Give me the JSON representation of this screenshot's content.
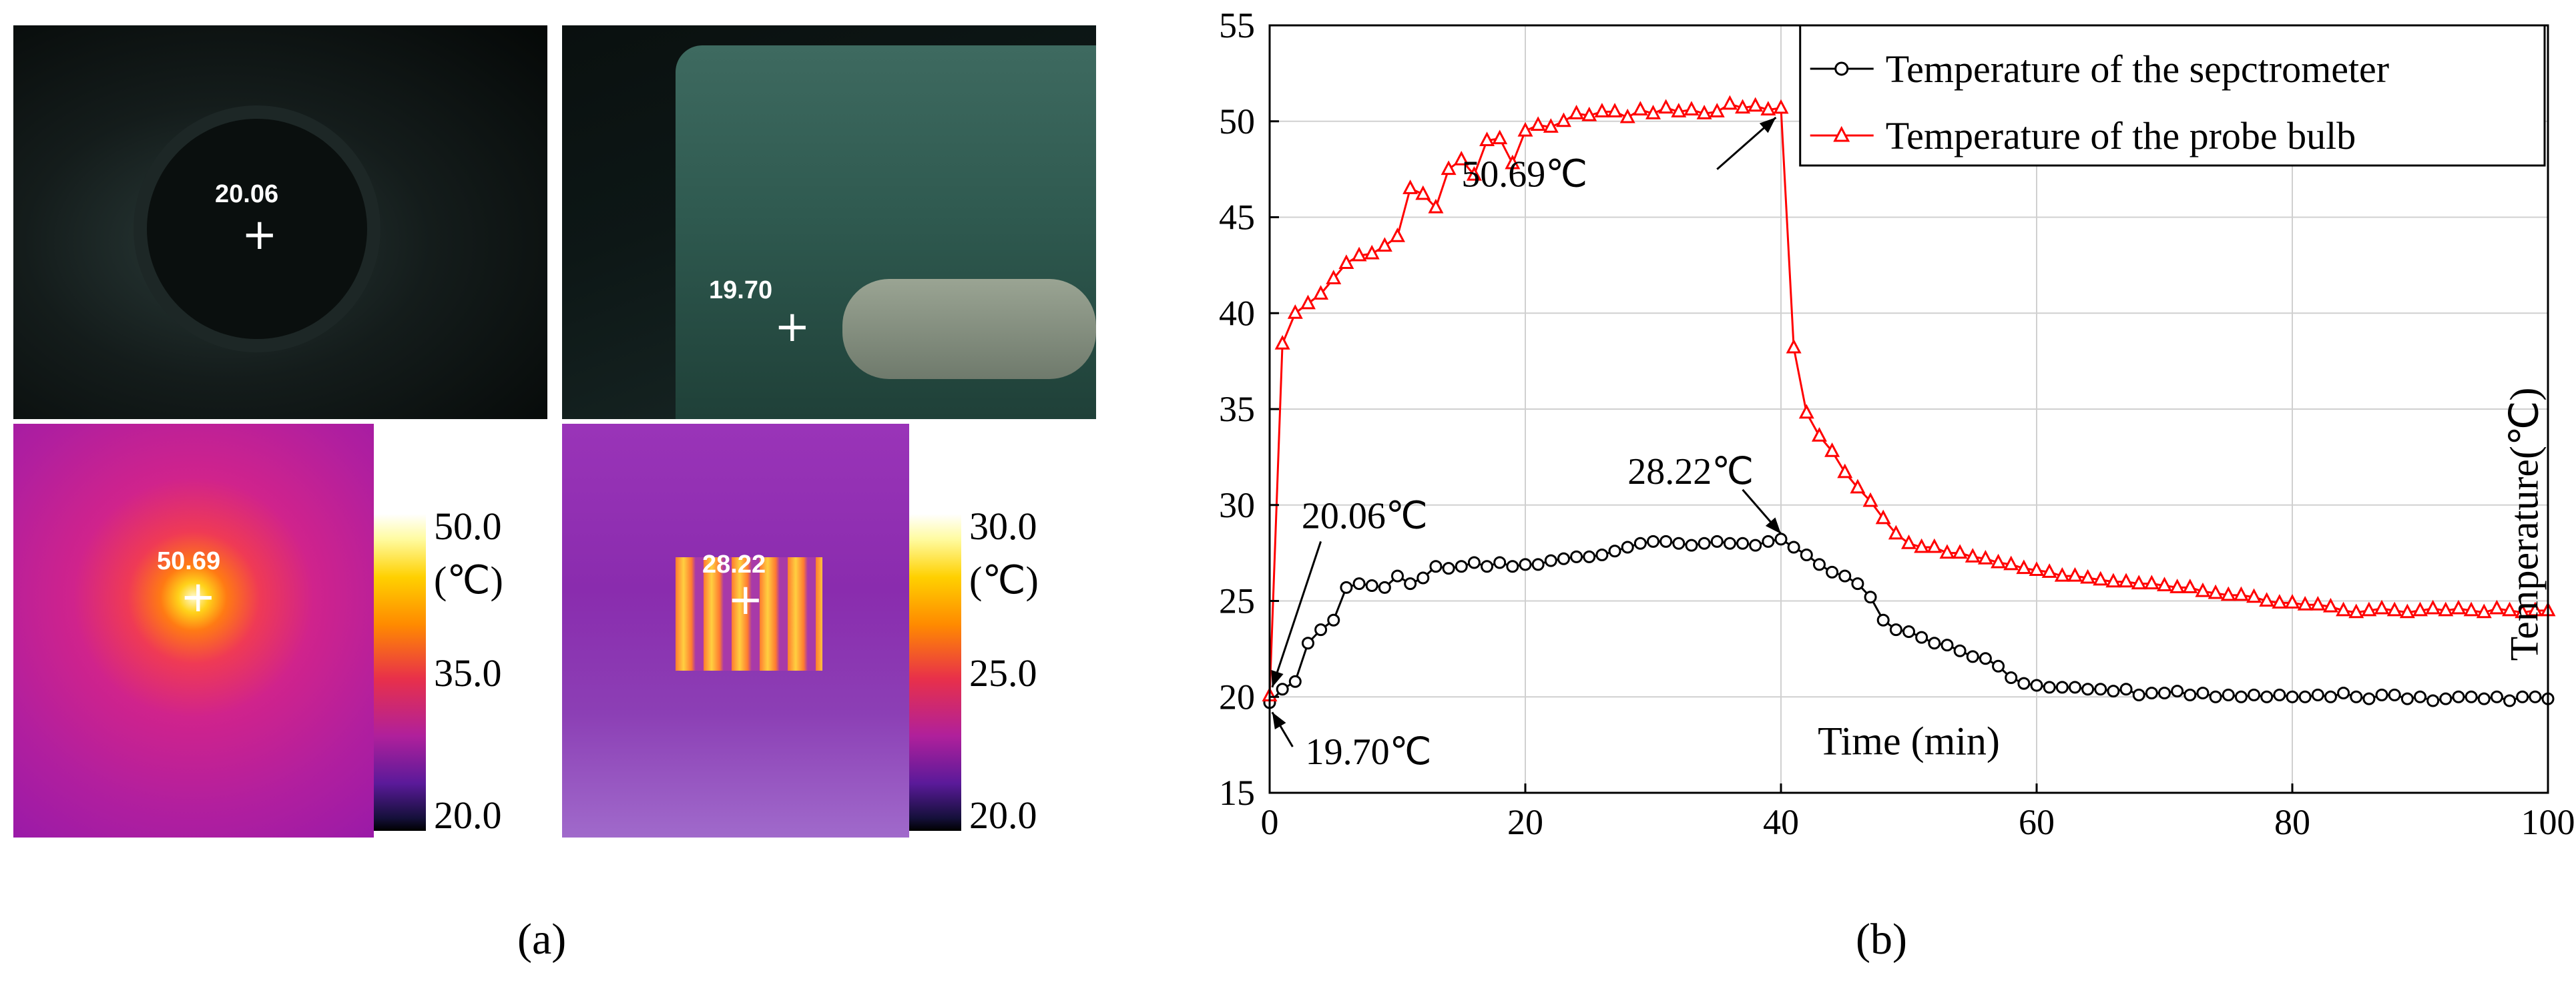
{
  "panel_a": {
    "label": "(a)",
    "photo_left_value": "20.06",
    "photo_right_value": "19.70",
    "thermal_left_value": "50.69",
    "thermal_right_value": "28.22",
    "colorbar_left": {
      "top": "50.0",
      "unit": "(℃)",
      "mid": "35.0",
      "bottom": "20.0"
    },
    "colorbar_right": {
      "top": "30.0",
      "unit": "(℃)",
      "mid": "25.0",
      "bottom": "20.0"
    }
  },
  "panel_b": {
    "label": "(b)"
  },
  "chart_data": {
    "type": "line",
    "xlabel": "Time (min)",
    "ylabel": "Temperature(℃)",
    "xlim": [
      0,
      100
    ],
    "ylim": [
      15,
      55
    ],
    "xticks": [
      "0",
      "20",
      "40",
      "60",
      "80",
      "100"
    ],
    "yticks": [
      "15",
      "20",
      "25",
      "30",
      "35",
      "40",
      "45",
      "50",
      "55"
    ],
    "grid": true,
    "legend_position": "top-right",
    "annotations": [
      "20.06℃",
      "19.70℃",
      "50.69℃",
      "28.22℃"
    ],
    "series": [
      {
        "name": "Temperature of the sepctrometer",
        "color": "#000000",
        "marker": "circle",
        "x": [
          0,
          1,
          2,
          3,
          4,
          5,
          6,
          7,
          8,
          9,
          10,
          11,
          12,
          13,
          14,
          15,
          16,
          17,
          18,
          19,
          20,
          21,
          22,
          23,
          24,
          25,
          26,
          27,
          28,
          29,
          30,
          31,
          32,
          33,
          34,
          35,
          36,
          37,
          38,
          39,
          40,
          41,
          42,
          43,
          44,
          45,
          46,
          47,
          48,
          49,
          50,
          51,
          52,
          53,
          54,
          55,
          56,
          57,
          58,
          59,
          60,
          61,
          62,
          63,
          64,
          65,
          66,
          67,
          68,
          69,
          70,
          71,
          72,
          73,
          74,
          75,
          76,
          77,
          78,
          79,
          80,
          81,
          82,
          83,
          84,
          85,
          86,
          87,
          88,
          89,
          90,
          91,
          92,
          93,
          94,
          95,
          96,
          97,
          98,
          99,
          100
        ],
        "values": [
          19.7,
          20.4,
          20.8,
          22.8,
          23.5,
          24.0,
          25.7,
          25.9,
          25.8,
          25.7,
          26.3,
          25.9,
          26.2,
          26.8,
          26.7,
          26.8,
          27.0,
          26.8,
          27.0,
          26.8,
          26.9,
          26.9,
          27.1,
          27.2,
          27.3,
          27.3,
          27.4,
          27.6,
          27.8,
          28.0,
          28.1,
          28.1,
          28.0,
          27.9,
          28.0,
          28.1,
          28.0,
          28.0,
          27.9,
          28.1,
          28.22,
          27.8,
          27.4,
          26.9,
          26.5,
          26.3,
          25.9,
          25.2,
          24.0,
          23.5,
          23.4,
          23.1,
          22.8,
          22.7,
          22.4,
          22.1,
          22.0,
          21.6,
          21.0,
          20.7,
          20.6,
          20.5,
          20.5,
          20.5,
          20.4,
          20.4,
          20.3,
          20.4,
          20.1,
          20.2,
          20.2,
          20.3,
          20.1,
          20.2,
          20.0,
          20.1,
          20.0,
          20.1,
          20.0,
          20.1,
          20.0,
          20.0,
          20.1,
          20.0,
          20.2,
          20.0,
          19.9,
          20.1,
          20.1,
          19.9,
          20.0,
          19.8,
          19.9,
          20.0,
          20.0,
          19.9,
          20.0,
          19.8,
          20.0,
          20.0,
          19.9
        ]
      },
      {
        "name": "Temperature of the probe bulb",
        "color": "#ff0000",
        "marker": "triangle",
        "x": [
          0,
          1,
          2,
          3,
          4,
          5,
          6,
          7,
          8,
          9,
          10,
          11,
          12,
          13,
          14,
          15,
          16,
          17,
          18,
          19,
          20,
          21,
          22,
          23,
          24,
          25,
          26,
          27,
          28,
          29,
          30,
          31,
          32,
          33,
          34,
          35,
          36,
          37,
          38,
          39,
          40,
          41,
          42,
          43,
          44,
          45,
          46,
          47,
          48,
          49,
          50,
          51,
          52,
          53,
          54,
          55,
          56,
          57,
          58,
          59,
          60,
          61,
          62,
          63,
          64,
          65,
          66,
          67,
          68,
          69,
          70,
          71,
          72,
          73,
          74,
          75,
          76,
          77,
          78,
          79,
          80,
          81,
          82,
          83,
          84,
          85,
          86,
          87,
          88,
          89,
          90,
          91,
          92,
          93,
          94,
          95,
          96,
          97,
          98,
          99,
          100
        ],
        "values": [
          20.06,
          38.4,
          40.0,
          40.5,
          41.0,
          41.8,
          42.6,
          43.0,
          43.1,
          43.5,
          44.0,
          46.5,
          46.2,
          45.5,
          47.5,
          48.0,
          47.2,
          49.0,
          49.1,
          47.8,
          49.5,
          49.8,
          49.7,
          50.0,
          50.4,
          50.3,
          50.5,
          50.5,
          50.2,
          50.6,
          50.4,
          50.7,
          50.5,
          50.6,
          50.4,
          50.5,
          50.9,
          50.7,
          50.8,
          50.6,
          50.69,
          38.2,
          34.8,
          33.6,
          32.8,
          31.7,
          30.9,
          30.2,
          29.3,
          28.5,
          28.0,
          27.8,
          27.8,
          27.5,
          27.5,
          27.3,
          27.2,
          27.0,
          26.9,
          26.7,
          26.6,
          26.5,
          26.3,
          26.3,
          26.2,
          26.1,
          26.0,
          26.0,
          25.9,
          25.9,
          25.8,
          25.7,
          25.7,
          25.5,
          25.4,
          25.3,
          25.3,
          25.2,
          25.0,
          24.9,
          24.9,
          24.8,
          24.8,
          24.7,
          24.5,
          24.4,
          24.5,
          24.6,
          24.5,
          24.4,
          24.5,
          24.6,
          24.5,
          24.6,
          24.5,
          24.4,
          24.6,
          24.5,
          24.4,
          24.5,
          24.5
        ]
      }
    ]
  }
}
